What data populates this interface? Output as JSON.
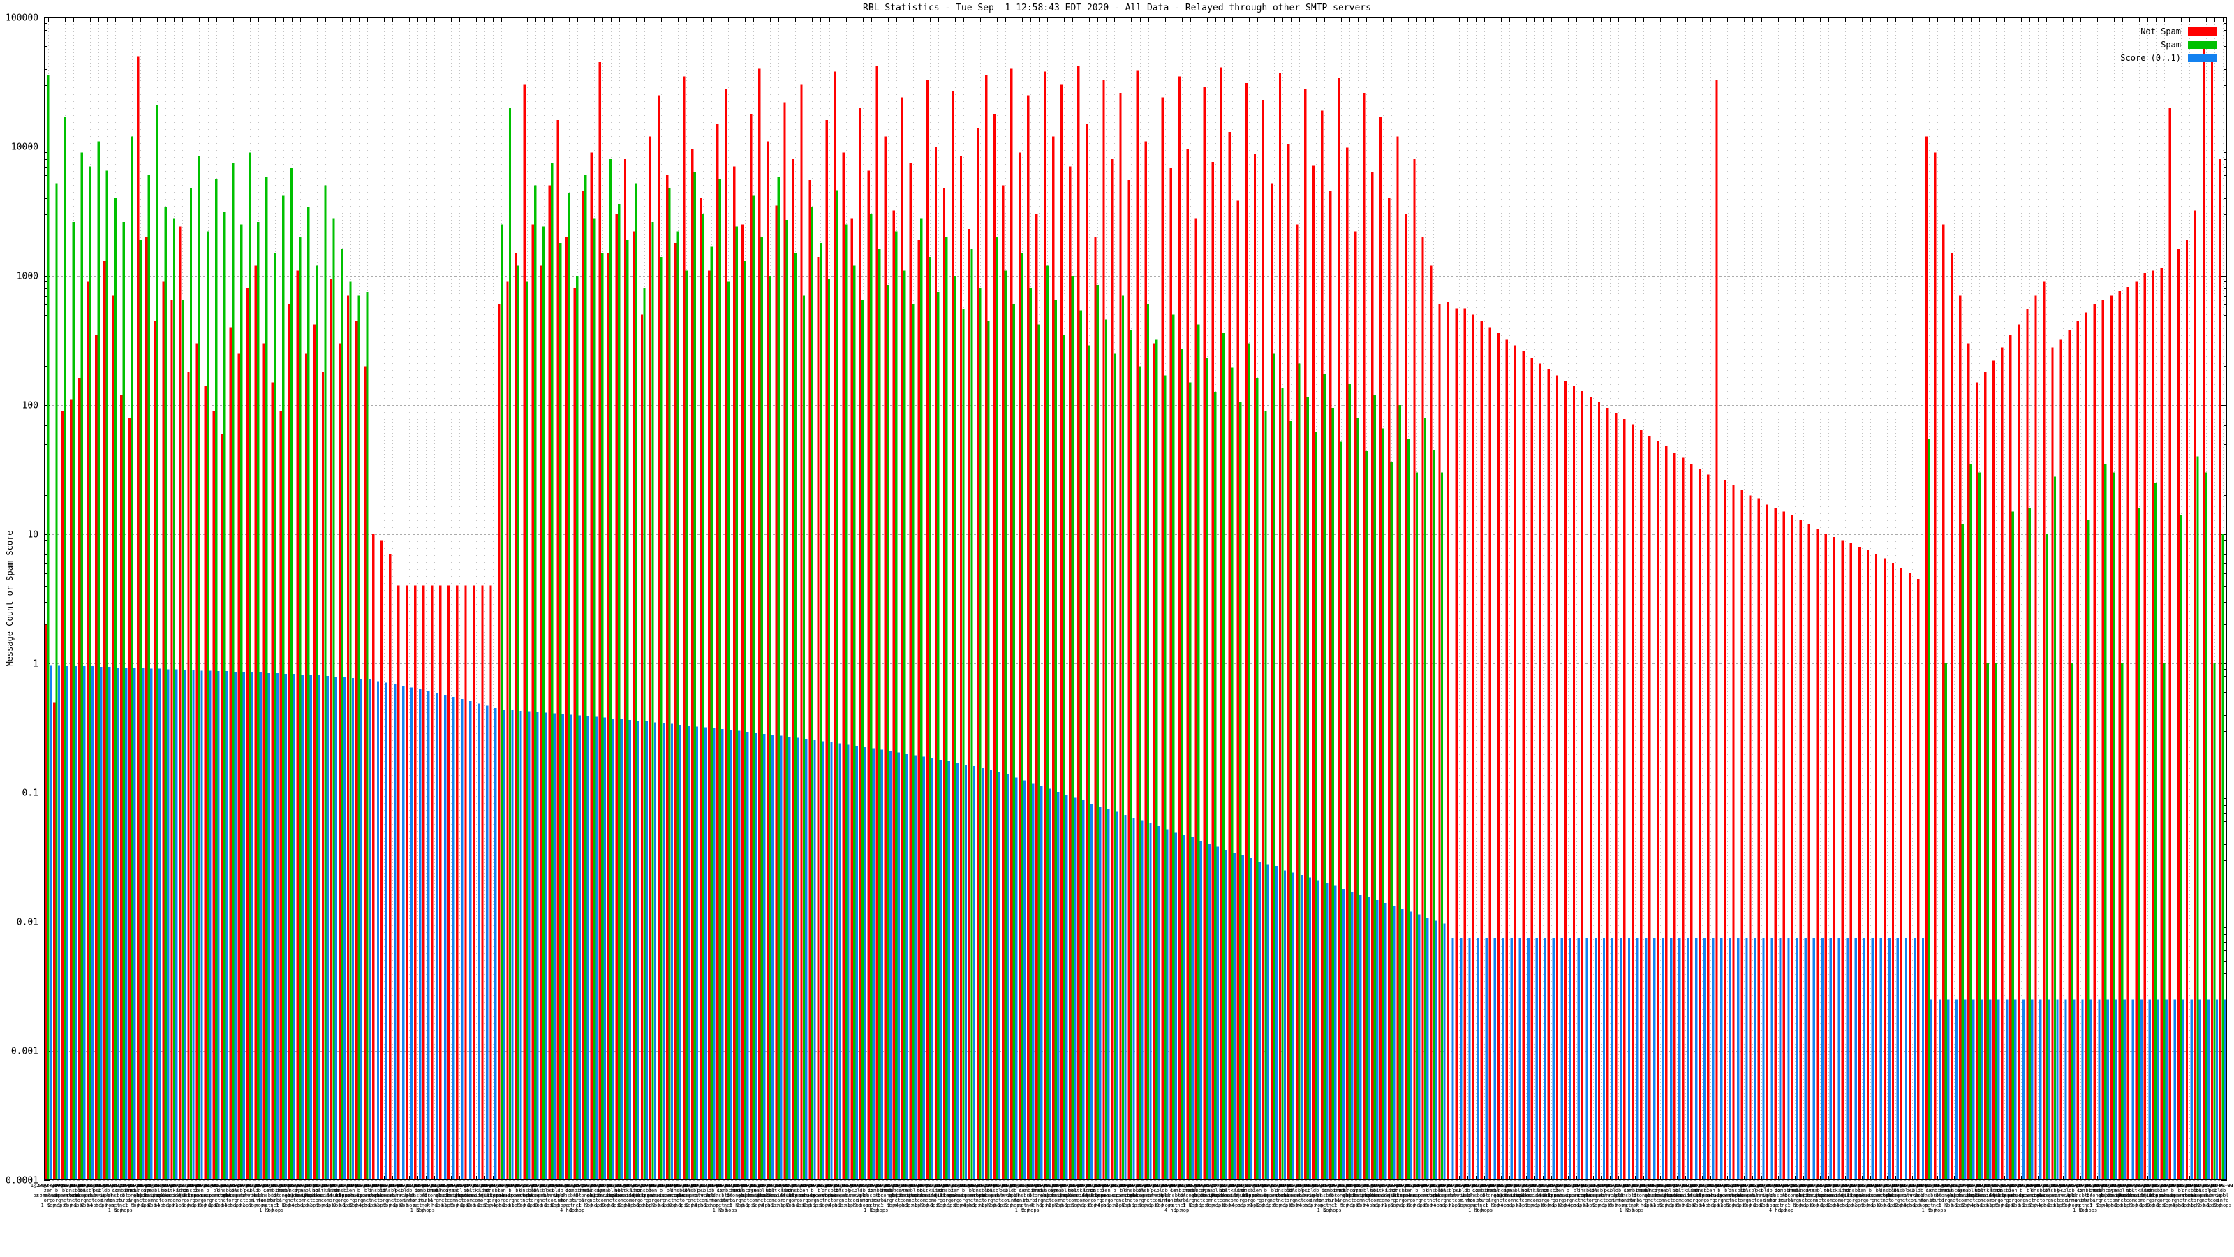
{
  "header": {
    "title": "RBL Statistics - Tue Sep  1 12:58:43 EDT 2020 - All Data - Relayed through other SMTP servers"
  },
  "legend": [
    {
      "label": "Not Spam",
      "color": "#ff0000"
    },
    {
      "label": "Spam",
      "color": "#00c000"
    },
    {
      "label": "Score (0..1)",
      "color": "#1482f0"
    }
  ],
  "yaxis": {
    "title": "Message Count or Spam Score",
    "tick_labels": [
      "100000",
      "10000",
      "1000",
      "100",
      "10",
      "1",
      "0.1",
      "0.01",
      "0.001",
      "0.0001"
    ]
  },
  "xaxis": {
    "date": "2020-09-01",
    "label_pool": [
      "zen.spamhaus.org",
      "b.barracudacentral.org",
      "bl.spamcop.net",
      "dnsbl.sorbs.net",
      "cbl.abuseat.org",
      "dnsbl-1.uceprotect.net",
      "psbl.surriel.com",
      "db.wpbl.info",
      "ix.dnsbl.manitu.net",
      "combined.rbl.msrbl.net",
      "dnsbl.dronebl.org",
      "truncate.gbudb.net",
      "dyna.spamrats.com",
      "bl.mailspike.net",
      "ubl.unsubscore.com",
      "hostkarma.junkemailfilter.com",
      "list.dnswl.org",
      "dnsbl.justspam.org"
    ],
    "hop_labels": [
      "1 hop",
      "2 hops",
      "3 hops",
      "4 hops"
    ]
  },
  "chart_data": {
    "type": "bar",
    "title": "RBL Statistics - Tue Sep  1 12:58:43 EDT 2020 - All Data - Relayed through other SMTP servers",
    "xlabel": "",
    "ylabel": "Message Count or Spam Score",
    "log_y": true,
    "ylim": [
      0.0001,
      100000
    ],
    "grid": true,
    "legend_position": "top-right",
    "series": [
      {
        "name": "Not Spam",
        "color": "#ff0000",
        "values": [
          2,
          0.5,
          90,
          110,
          160,
          900,
          350,
          1300,
          700,
          120,
          80,
          50000,
          2000,
          450,
          900,
          650,
          2400,
          180,
          300,
          140,
          90,
          60,
          400,
          250,
          800,
          1200,
          300,
          150,
          90,
          600,
          1100,
          250,
          420,
          180,
          950,
          300,
          700,
          450,
          200,
          10,
          9,
          7,
          4,
          4,
          4,
          4,
          4,
          4,
          4,
          4,
          4,
          4,
          4,
          4,
          600,
          900,
          1500,
          30000,
          2500,
          1200,
          5000,
          16000,
          2000,
          800,
          4500,
          9000,
          45000,
          1500,
          3000,
          8000,
          2200,
          500,
          12000,
          25000,
          6000,
          1800,
          35000,
          9500,
          4000,
          1100,
          15000,
          28000,
          7000,
          2500,
          18000,
          40000,
          11000,
          3500,
          22000,
          8000,
          30000,
          5500,
          1400,
          16000,
          38000,
          9000,
          2800,
          20000,
          6500,
          42000,
          12000,
          3200,
          24000,
          7500,
          1900,
          33000,
          10000,
          4800,
          27000,
          8500,
          2300,
          14000,
          36000,
          18000,
          5000,
          40000,
          9000,
          25000,
          3000,
          38000,
          12000,
          30000,
          7000,
          42000,
          15000,
          2000,
          33000,
          8000,
          26000,
          5500,
          39000,
          11000,
          300,
          24000,
          6800,
          35000,
          9500,
          2800,
          29000,
          7600,
          41000,
          13000,
          3800,
          31000,
          8800,
          23000,
          5200,
          37000,
          10500,
          2500,
          28000,
          7200,
          19000,
          4500,
          34000,
          9800,
          2200,
          26000,
          6400,
          17000,
          4000,
          12000,
          3000,
          8000,
          2000,
          1200,
          600,
          630,
          560,
          560,
          500,
          450,
          400,
          360,
          320,
          290,
          260,
          230,
          210,
          190,
          170,
          155,
          140,
          128,
          116,
          105,
          95,
          86,
          78,
          71,
          64,
          58,
          53,
          48,
          43,
          39,
          35,
          32,
          29,
          33000,
          26,
          24,
          22,
          20,
          19,
          17,
          16,
          15,
          14,
          13,
          12,
          11,
          10,
          9.5,
          9,
          8.5,
          8,
          7.5,
          7,
          6.5,
          6,
          5.5,
          5,
          4.5,
          12000,
          9000,
          2500,
          1500,
          700,
          300,
          150,
          180,
          220,
          280,
          350,
          420,
          550,
          700,
          900,
          280,
          320,
          380,
          450,
          520,
          600,
          650,
          700,
          760,
          820,
          900,
          1050,
          1100,
          1150,
          20000,
          1600,
          1900,
          3200,
          59000,
          47000,
          8000
        ]
      },
      {
        "name": "Spam",
        "color": "#00c000",
        "values": [
          36000,
          5200,
          17000,
          2600,
          9000,
          7000,
          11000,
          6500,
          4000,
          2600,
          12000,
          1900,
          6000,
          21000,
          3400,
          2800,
          650,
          4800,
          8500,
          2200,
          5600,
          3100,
          7400,
          2500,
          9000,
          2600,
          5800,
          1500,
          4200,
          6800,
          2000,
          3400,
          1200,
          5000,
          2800,
          1600,
          900,
          700,
          750,
          0,
          0,
          0,
          0,
          0,
          0,
          0,
          0,
          0,
          0,
          0,
          0,
          0,
          0,
          0,
          2500,
          20000,
          1200,
          900,
          5000,
          2400,
          7500,
          1800,
          4400,
          1000,
          6000,
          2800,
          1500,
          8000,
          3600,
          1900,
          5200,
          800,
          2600,
          1400,
          4800,
          2200,
          1100,
          6400,
          3000,
          1700,
          5600,
          900,
          2400,
          1300,
          4200,
          2000,
          1000,
          5800,
          2700,
          1500,
          700,
          3400,
          1800,
          950,
          4600,
          2500,
          1200,
          650,
          3000,
          1600,
          850,
          2200,
          1100,
          600,
          2800,
          1400,
          750,
          2000,
          1000,
          550,
          1600,
          800,
          450,
          2000,
          1100,
          600,
          1500,
          800,
          420,
          1200,
          650,
          350,
          1000,
          540,
          290,
          850,
          460,
          250,
          700,
          380,
          200,
          600,
          320,
          170,
          500,
          270,
          150,
          420,
          230,
          125,
          360,
          195,
          105,
          300,
          160,
          90,
          250,
          135,
          75,
          210,
          115,
          62,
          175,
          95,
          52,
          145,
          80,
          44,
          120,
          66,
          36,
          100,
          55,
          30,
          80,
          45,
          30,
          0,
          0,
          0,
          0,
          0,
          0,
          0,
          0,
          0,
          0,
          0,
          0,
          0,
          0,
          0,
          0,
          0,
          0,
          0,
          0,
          0,
          0,
          0,
          0,
          0,
          0,
          0,
          0,
          0,
          0,
          0,
          0,
          0,
          0,
          0,
          0,
          0,
          0,
          0,
          0,
          0,
          0,
          0,
          0,
          0,
          0,
          0,
          0,
          0,
          0,
          0,
          0,
          0,
          0,
          0,
          0,
          0,
          55,
          0,
          1,
          0,
          12,
          35,
          30,
          1,
          1,
          0,
          15,
          0,
          16,
          0,
          10,
          28,
          0,
          1,
          0,
          13,
          0,
          35,
          30,
          1,
          0,
          16,
          0,
          25,
          1,
          0,
          14,
          0,
          40,
          30,
          1,
          10
        ]
      },
      {
        "name": "Score (0..1)",
        "color": "#1482f0",
        "values": [
          0.97,
          0.97,
          0.96,
          0.96,
          0.95,
          0.95,
          0.94,
          0.94,
          0.93,
          0.93,
          0.92,
          0.92,
          0.91,
          0.91,
          0.9,
          0.9,
          0.89,
          0.89,
          0.88,
          0.88,
          0.87,
          0.87,
          0.86,
          0.86,
          0.85,
          0.85,
          0.84,
          0.84,
          0.83,
          0.83,
          0.82,
          0.82,
          0.81,
          0.8,
          0.79,
          0.78,
          0.77,
          0.76,
          0.75,
          0.73,
          0.71,
          0.69,
          0.67,
          0.65,
          0.63,
          0.61,
          0.59,
          0.57,
          0.55,
          0.53,
          0.51,
          0.49,
          0.47,
          0.45,
          0.44,
          0.435,
          0.43,
          0.425,
          0.42,
          0.415,
          0.41,
          0.405,
          0.4,
          0.395,
          0.39,
          0.385,
          0.38,
          0.375,
          0.37,
          0.365,
          0.36,
          0.355,
          0.35,
          0.345,
          0.34,
          0.335,
          0.33,
          0.325,
          0.32,
          0.315,
          0.31,
          0.305,
          0.3,
          0.295,
          0.29,
          0.285,
          0.28,
          0.275,
          0.27,
          0.265,
          0.26,
          0.255,
          0.25,
          0.245,
          0.24,
          0.235,
          0.23,
          0.225,
          0.22,
          0.215,
          0.21,
          0.205,
          0.2,
          0.195,
          0.19,
          0.185,
          0.18,
          0.175,
          0.17,
          0.165,
          0.16,
          0.155,
          0.15,
          0.145,
          0.138,
          0.131,
          0.124,
          0.118,
          0.112,
          0.107,
          0.101,
          0.096,
          0.091,
          0.087,
          0.082,
          0.078,
          0.074,
          0.071,
          0.067,
          0.064,
          0.061,
          0.058,
          0.055,
          0.052,
          0.049,
          0.047,
          0.045,
          0.042,
          0.04,
          0.038,
          0.036,
          0.034,
          0.033,
          0.031,
          0.029,
          0.028,
          0.027,
          0.025,
          0.024,
          0.023,
          0.022,
          0.021,
          0.02,
          0.019,
          0.018,
          0.017,
          0.016,
          0.0155,
          0.0147,
          0.014,
          0.0133,
          0.0126,
          0.012,
          0.0114,
          0.0108,
          0.0102,
          0.0097,
          0.0075,
          0.0075,
          0.0075,
          0.0075,
          0.0075,
          0.0075,
          0.0075,
          0.0075,
          0.0075,
          0.0075,
          0.0075,
          0.0075,
          0.0075,
          0.0075,
          0.0075,
          0.0075,
          0.0075,
          0.0075,
          0.0075,
          0.0075,
          0.0075,
          0.0075,
          0.0075,
          0.0075,
          0.0075,
          0.0075,
          0.0075,
          0.0075,
          0.0075,
          0.0075,
          0.0075,
          0.0075,
          0.0075,
          0.0075,
          0.0075,
          0.0075,
          0.0075,
          0.0075,
          0.0075,
          0.0075,
          0.0075,
          0.0075,
          0.0075,
          0.0075,
          0.0075,
          0.0075,
          0.0075,
          0.0075,
          0.0075,
          0.0075,
          0.0075,
          0.0075,
          0.0075,
          0.0075,
          0.0075,
          0.0075,
          0.0075,
          0.0025,
          0.0025,
          0.0025,
          0.0025,
          0.0025,
          0.0025,
          0.0025,
          0.0025,
          0.0025,
          0.0025,
          0.0025,
          0.0025,
          0.0025,
          0.0025,
          0.0025,
          0.0025,
          0.0025,
          0.0025,
          0.0025,
          0.0025,
          0.0025,
          0.0025,
          0.0025,
          0.0025,
          0.0025,
          0.0025,
          0.0025,
          0.0025,
          0.0025,
          0.0025,
          0.0025,
          0.0025,
          0.0025,
          0.0025,
          0.0025,
          0.0025
        ]
      }
    ]
  }
}
